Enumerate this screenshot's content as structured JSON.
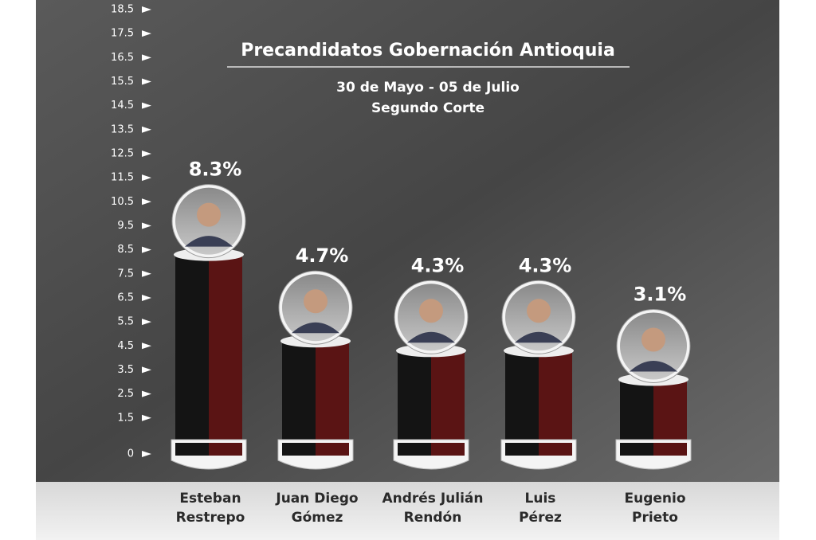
{
  "chart_data": {
    "type": "bar",
    "title": "Precandidatos Gobernación Antioquia",
    "subtitle": "30 de Mayo - 05 de Julio",
    "subtitle2": "Segundo Corte",
    "categories": [
      "Esteban Restrepo",
      "Juan Diego Gómez",
      "Andrés Julián Rendón",
      "Luis Pérez",
      "Eugenio Prieto"
    ],
    "values": [
      8.3,
      4.7,
      4.3,
      4.3,
      3.1
    ],
    "value_labels": [
      "8.3%",
      "4.7%",
      "4.3%",
      "4.3%",
      "3.1%"
    ],
    "colors": [
      "#141414",
      "#5a1414"
    ],
    "ylim": [
      0,
      18.5
    ],
    "yticks": [
      0,
      1.5,
      2.5,
      3.5,
      4.5,
      5.5,
      6.5,
      7.5,
      8.5,
      9.5,
      10.5,
      11.5,
      12.5,
      13.5,
      14.5,
      15.5,
      16.5,
      17.5,
      18.5
    ]
  }
}
